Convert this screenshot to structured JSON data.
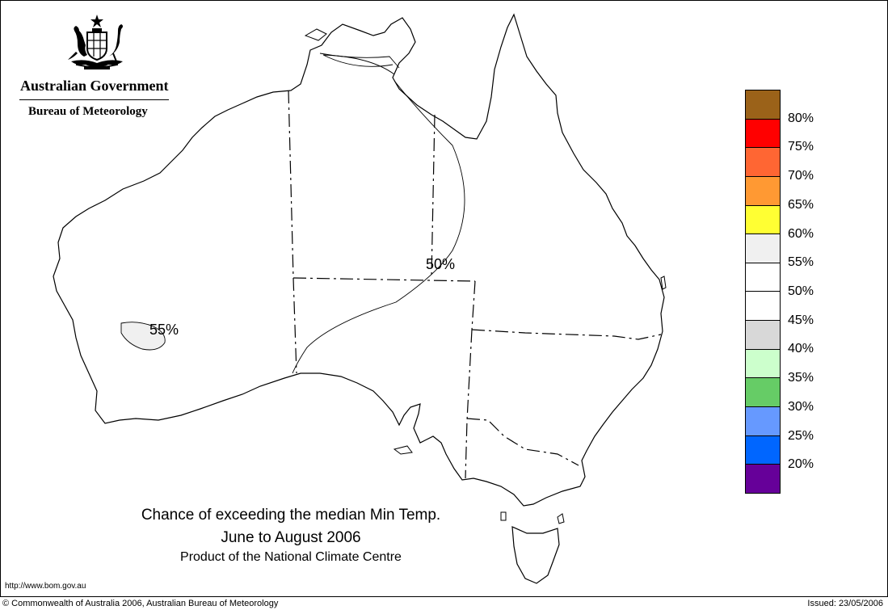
{
  "branding": {
    "government": "Australian Government",
    "agency": "Bureau of Meteorology"
  },
  "map": {
    "region_labels": [
      {
        "text": "55%"
      },
      {
        "text": "50%"
      }
    ],
    "colors": {
      "outline": "#000000",
      "region_55_fill": "#f0f0f0"
    }
  },
  "legend": {
    "labels": [
      "80%",
      "75%",
      "70%",
      "65%",
      "60%",
      "55%",
      "50%",
      "45%",
      "40%",
      "35%",
      "30%",
      "25%",
      "20%"
    ],
    "colors": [
      "#9b6219",
      "#ff0000",
      "#ff6633",
      "#ff9933",
      "#ffff33",
      "#f0f0f0",
      "#ffffff",
      "#ffffff",
      "#d8d8d8",
      "#ccffcc",
      "#66cc66",
      "#6699ff",
      "#0066ff",
      "#660099"
    ]
  },
  "title": {
    "line1": "Chance of exceeding the median Min Temp.",
    "line2": "June to August 2006",
    "line3": "Product of the National Climate Centre"
  },
  "footer": {
    "url": "http://www.bom.gov.au",
    "copyright": "© Commonwealth of Australia 2006, Australian Bureau of Meteorology",
    "issued": "Issued: 23/05/2006"
  }
}
